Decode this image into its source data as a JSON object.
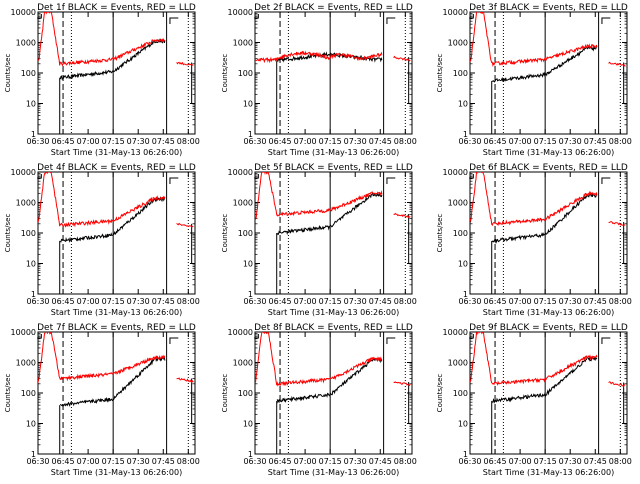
{
  "chart_data": [
    {
      "type": "line",
      "title": "Det 1f  BLACK = Events, RED = LLD",
      "ylabel": "Counts/sec",
      "xlabel": "Start Time (31-May-13 06:26:00)",
      "x_ticks": [
        "06:30",
        "06:45",
        "07:00",
        "07:15",
        "07:30",
        "07:45",
        "08:00"
      ],
      "y_ticks": [
        "1",
        "10",
        "100",
        "1000",
        "10000"
      ],
      "yscale": "log",
      "ylim": [
        1,
        10000
      ],
      "profile": {
        "red_peak": 10000,
        "red_plateau": 200,
        "red_end": 1200,
        "red_after": 220,
        "black_start": 70,
        "black_end": 1100
      },
      "series": [
        {
          "name": "Events",
          "color": "#000000"
        },
        {
          "name": "LLD",
          "color": "#ff0000"
        }
      ]
    },
    {
      "type": "line",
      "title": "Det 2f  BLACK = Events, RED = LLD",
      "ylabel": "Counts/sec",
      "xlabel": "Start Time (31-May-13 06:26:00)",
      "x_ticks": [
        "06:30",
        "06:45",
        "07:00",
        "07:15",
        "07:30",
        "07:45",
        "08:00"
      ],
      "y_ticks": [
        "1",
        "10",
        "100",
        "1000",
        "10000"
      ],
      "yscale": "log",
      "ylim": [
        1,
        10000
      ],
      "profile": {
        "red_peak": null,
        "red_plateau": 300,
        "red_end": 400,
        "red_after": 330,
        "black_start": 260,
        "black_end": 280
      },
      "series": [
        {
          "name": "Events",
          "color": "#000000"
        },
        {
          "name": "LLD",
          "color": "#ff0000"
        }
      ]
    },
    {
      "type": "line",
      "title": "Det 3f  BLACK = Events, RED = LLD",
      "ylabel": "Counts/sec",
      "xlabel": "Start Time (31-May-13 06:26:00)",
      "x_ticks": [
        "06:30",
        "06:45",
        "07:00",
        "07:15",
        "07:30",
        "07:45",
        "08:00"
      ],
      "y_ticks": [
        "1",
        "10",
        "100",
        "1000",
        "10000"
      ],
      "yscale": "log",
      "ylim": [
        1,
        10000
      ],
      "profile": {
        "red_peak": 10000,
        "red_plateau": 200,
        "red_end": 750,
        "red_after": 220,
        "black_start": 55,
        "black_end": 650
      },
      "series": [
        {
          "name": "Events",
          "color": "#000000"
        },
        {
          "name": "LLD",
          "color": "#ff0000"
        }
      ]
    },
    {
      "type": "line",
      "title": "Det 4f  BLACK = Events, RED = LLD",
      "ylabel": "Counts/sec",
      "xlabel": "Start Time (31-May-13 06:26:00)",
      "x_ticks": [
        "06:30",
        "06:45",
        "07:00",
        "07:15",
        "07:30",
        "07:45",
        "08:00"
      ],
      "y_ticks": [
        "1",
        "10",
        "100",
        "1000",
        "10000"
      ],
      "yscale": "log",
      "ylim": [
        1,
        10000
      ],
      "profile": {
        "red_peak": 10000,
        "red_plateau": 180,
        "red_end": 1400,
        "red_after": 200,
        "black_start": 55,
        "black_end": 1300
      },
      "series": [
        {
          "name": "Events",
          "color": "#000000"
        },
        {
          "name": "LLD",
          "color": "#ff0000"
        }
      ]
    },
    {
      "type": "line",
      "title": "Det 5f  BLACK = Events, RED = LLD",
      "ylabel": "Counts/sec",
      "xlabel": "Start Time (31-May-13 06:26:00)",
      "x_ticks": [
        "06:30",
        "06:45",
        "07:00",
        "07:15",
        "07:30",
        "07:45",
        "08:00"
      ],
      "y_ticks": [
        "1",
        "10",
        "100",
        "1000",
        "10000"
      ],
      "yscale": "log",
      "ylim": [
        1,
        10000
      ],
      "profile": {
        "red_peak": 10000,
        "red_plateau": 400,
        "red_end": 2000,
        "red_after": 420,
        "black_start": 100,
        "black_end": 1800
      },
      "series": [
        {
          "name": "Events",
          "color": "#000000"
        },
        {
          "name": "LLD",
          "color": "#ff0000"
        }
      ]
    },
    {
      "type": "line",
      "title": "Det 6f  BLACK = Events, RED = LLD",
      "ylabel": "Counts/sec",
      "xlabel": "Start Time (31-May-13 06:26:00)",
      "x_ticks": [
        "06:30",
        "06:45",
        "07:00",
        "07:15",
        "07:30",
        "07:45",
        "08:00"
      ],
      "y_ticks": [
        "1",
        "10",
        "100",
        "1000",
        "10000"
      ],
      "yscale": "log",
      "ylim": [
        1,
        10000
      ],
      "profile": {
        "red_peak": 10000,
        "red_plateau": 200,
        "red_end": 1900,
        "red_after": 230,
        "black_start": 55,
        "black_end": 1700
      },
      "series": [
        {
          "name": "Events",
          "color": "#000000"
        },
        {
          "name": "LLD",
          "color": "#ff0000"
        }
      ]
    },
    {
      "type": "line",
      "title": "Det 7f  BLACK = Events, RED = LLD",
      "ylabel": "Counts/sec",
      "xlabel": "Start Time (31-May-13 06:26:00)",
      "x_ticks": [
        "06:30",
        "06:45",
        "07:00",
        "07:15",
        "07:30",
        "07:45",
        "08:00"
      ],
      "y_ticks": [
        "1",
        "10",
        "100",
        "1000",
        "10000"
      ],
      "yscale": "log",
      "ylim": [
        1,
        10000
      ],
      "profile": {
        "red_peak": 10000,
        "red_plateau": 300,
        "red_end": 1500,
        "red_after": 300,
        "black_start": 40,
        "black_end": 1300
      },
      "series": [
        {
          "name": "Events",
          "color": "#000000"
        },
        {
          "name": "LLD",
          "color": "#ff0000"
        }
      ]
    },
    {
      "type": "line",
      "title": "Det 8f  BLACK = Events, RED = LLD",
      "ylabel": "Counts/sec",
      "xlabel": "Start Time (31-May-13 06:26:00)",
      "x_ticks": [
        "06:30",
        "06:45",
        "07:00",
        "07:15",
        "07:30",
        "07:45",
        "08:00"
      ],
      "y_ticks": [
        "1",
        "10",
        "100",
        "1000",
        "10000"
      ],
      "yscale": "log",
      "ylim": [
        1,
        10000
      ],
      "profile": {
        "red_peak": 10000,
        "red_plateau": 200,
        "red_end": 1300,
        "red_after": 230,
        "black_start": 55,
        "black_end": 1200
      },
      "series": [
        {
          "name": "Events",
          "color": "#000000"
        },
        {
          "name": "LLD",
          "color": "#ff0000"
        }
      ]
    },
    {
      "type": "line",
      "title": "Det 9f  BLACK = Events, RED = LLD",
      "ylabel": "Counts/sec",
      "xlabel": "Start Time (31-May-13 06:26:00)",
      "x_ticks": [
        "06:30",
        "06:45",
        "07:00",
        "07:15",
        "07:30",
        "07:45",
        "08:00"
      ],
      "y_ticks": [
        "1",
        "10",
        "100",
        "1000",
        "10000"
      ],
      "yscale": "log",
      "ylim": [
        1,
        10000
      ],
      "profile": {
        "red_peak": 10000,
        "red_plateau": 200,
        "red_end": 1500,
        "red_after": 220,
        "black_start": 55,
        "black_end": 1300
      },
      "series": [
        {
          "name": "Events",
          "color": "#000000"
        },
        {
          "name": "LLD",
          "color": "#ff0000"
        }
      ]
    }
  ]
}
